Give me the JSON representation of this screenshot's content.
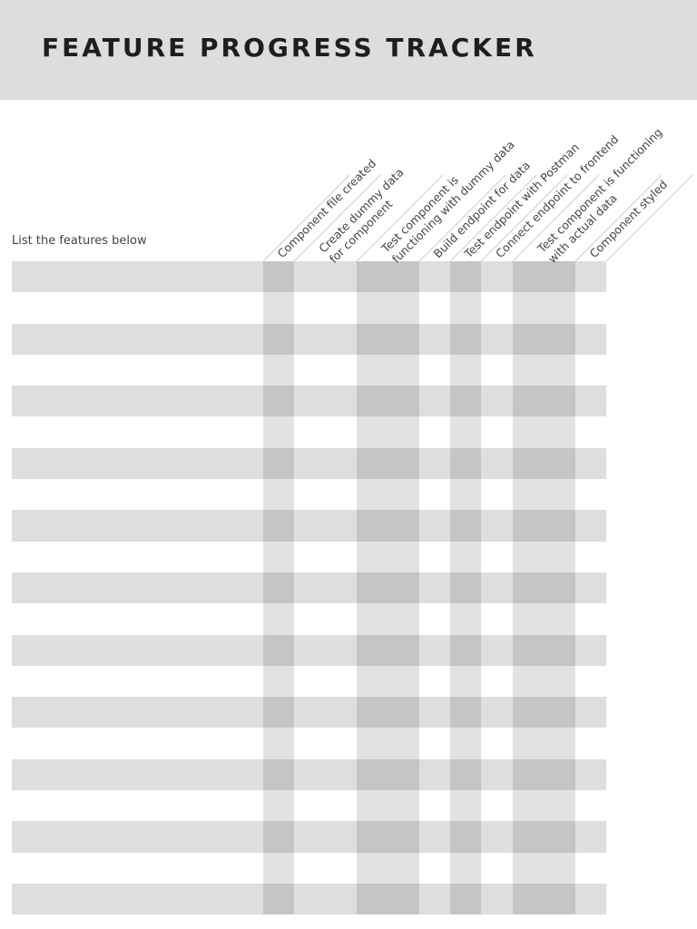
{
  "tracker": {
    "title": "FEATURE PROGRESS TRACKER",
    "list_label": "List the features below",
    "row_count": 21,
    "columns": [
      {
        "lines": [
          "Component file created"
        ]
      },
      {
        "lines": [
          "Create dummy data",
          "for component"
        ]
      },
      {
        "lines": [
          "Test component is",
          "functioning with dummy data"
        ]
      },
      {
        "lines": [
          "Build endpoint for data"
        ]
      },
      {
        "lines": [
          "Test endpoint with Postman"
        ]
      },
      {
        "lines": [
          "Connect endpoint to frontend"
        ]
      },
      {
        "lines": [
          "Test component is functioning",
          "with actual data"
        ]
      },
      {
        "lines": [
          "Component styled"
        ]
      }
    ]
  },
  "colors": {
    "header_bg": "#dddddd",
    "title_text": "#1e1e1e",
    "stripe": "#dedede",
    "column_shade": "#e2e2e2",
    "intersection": "#c5c5c5",
    "label_text": "#444444",
    "guide_line": "#cccccc"
  }
}
